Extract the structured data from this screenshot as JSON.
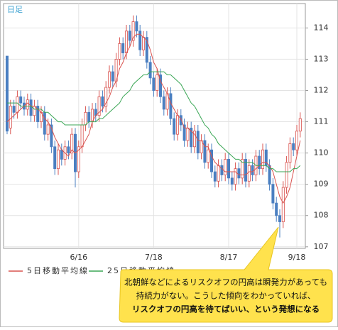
{
  "chart_data": {
    "type": "candlestick",
    "corner_label": "日足",
    "categories": [
      null,
      null,
      null,
      null,
      null,
      null,
      null,
      null,
      null,
      null,
      null,
      null,
      null,
      null,
      null,
      null,
      null,
      null,
      null,
      null,
      null,
      "6/16",
      null,
      null,
      null,
      null,
      null,
      null,
      null,
      null,
      null,
      null,
      null,
      null,
      null,
      null,
      null,
      null,
      null,
      null,
      null,
      null,
      null,
      "7/18",
      null,
      null,
      null,
      null,
      null,
      null,
      null,
      null,
      null,
      null,
      null,
      null,
      null,
      null,
      null,
      null,
      null,
      null,
      null,
      null,
      null,
      "8/17",
      null,
      null,
      null,
      null,
      null,
      null,
      null,
      null,
      null,
      null,
      null,
      null,
      null,
      null,
      null,
      null,
      null,
      null,
      null,
      "9/18",
      null
    ],
    "open": [
      113.1,
      110.8,
      111.5,
      111.3,
      111.8,
      111.6,
      111.4,
      111.7,
      111.2,
      111.5,
      111.0,
      111.3,
      110.6,
      110.9,
      110.2,
      109.5,
      110.1,
      109.8,
      110.2,
      110.0,
      110.6,
      109.4,
      110.2,
      110.9,
      111.3,
      111.0,
      111.4,
      111.2,
      111.8,
      111.5,
      112.1,
      112.6,
      112.3,
      113.0,
      113.5,
      113.2,
      113.9,
      113.6,
      114.2,
      113.9,
      113.3,
      113.7,
      112.9,
      112.4,
      112.0,
      112.5,
      111.8,
      111.4,
      111.9,
      111.1,
      110.6,
      111.2,
      110.9,
      110.4,
      110.8,
      110.2,
      110.7,
      110.0,
      110.4,
      109.7,
      110.1,
      109.4,
      109.1,
      109.6,
      109.3,
      109.8,
      109.2,
      109.0,
      109.5,
      109.2,
      109.8,
      109.1,
      109.6,
      109.3,
      109.9,
      109.5,
      110.1,
      109.6,
      109.0,
      108.4,
      108.0,
      107.8,
      108.9,
      109.7,
      110.3,
      110.1,
      110.7
    ],
    "high": [
      113.1,
      111.7,
      111.7,
      112.0,
      112.0,
      111.8,
      111.9,
      111.9,
      111.7,
      111.7,
      111.5,
      111.5,
      111.1,
      111.1,
      110.4,
      110.3,
      110.3,
      110.4,
      110.4,
      110.8,
      110.8,
      110.4,
      111.1,
      111.5,
      111.5,
      111.6,
      111.6,
      112.0,
      112.0,
      112.3,
      112.8,
      112.8,
      113.2,
      113.7,
      113.7,
      114.1,
      114.1,
      114.4,
      114.4,
      114.1,
      113.9,
      113.9,
      113.1,
      112.6,
      112.7,
      112.7,
      112.0,
      112.1,
      112.1,
      111.3,
      111.4,
      111.4,
      111.1,
      111.0,
      111.0,
      110.9,
      110.9,
      110.6,
      110.6,
      110.3,
      110.3,
      109.6,
      109.8,
      109.8,
      110.0,
      110.0,
      109.4,
      109.7,
      109.7,
      110.0,
      110.0,
      109.8,
      109.8,
      110.1,
      110.1,
      110.3,
      110.3,
      109.8,
      109.2,
      108.6,
      108.2,
      109.1,
      109.9,
      110.5,
      110.5,
      110.9,
      111.3
    ],
    "low": [
      110.6,
      110.6,
      111.1,
      111.1,
      111.4,
      111.2,
      111.2,
      111.0,
      111.0,
      110.8,
      110.8,
      110.4,
      110.4,
      110.0,
      109.3,
      109.3,
      109.6,
      109.6,
      109.8,
      109.8,
      108.9,
      109.2,
      110.0,
      110.7,
      110.8,
      110.8,
      111.0,
      111.0,
      111.3,
      111.3,
      111.9,
      112.1,
      112.1,
      112.8,
      113.0,
      113.0,
      113.4,
      113.4,
      113.7,
      113.1,
      113.1,
      112.7,
      112.2,
      111.8,
      111.8,
      111.6,
      111.2,
      111.2,
      110.9,
      110.4,
      110.4,
      110.7,
      110.2,
      110.2,
      110.0,
      110.0,
      109.8,
      109.8,
      109.5,
      109.5,
      109.2,
      108.9,
      108.9,
      109.1,
      109.1,
      109.0,
      108.8,
      108.8,
      109.0,
      109.0,
      108.9,
      108.9,
      109.1,
      109.1,
      109.3,
      109.3,
      109.4,
      108.8,
      108.2,
      107.8,
      107.3,
      107.6,
      108.7,
      109.5,
      109.9,
      109.9,
      110.5
    ],
    "close": [
      110.7,
      111.5,
      111.3,
      111.8,
      111.6,
      111.4,
      111.7,
      111.2,
      111.5,
      111.0,
      111.3,
      110.6,
      110.9,
      110.2,
      109.5,
      110.1,
      109.8,
      110.2,
      110.0,
      110.6,
      109.4,
      110.2,
      110.9,
      111.3,
      111.0,
      111.4,
      111.2,
      111.8,
      111.5,
      112.1,
      112.6,
      112.3,
      113.0,
      113.5,
      113.2,
      113.9,
      113.6,
      114.2,
      113.9,
      113.3,
      113.7,
      112.9,
      112.4,
      112.0,
      112.5,
      111.8,
      111.4,
      111.9,
      111.1,
      110.6,
      111.2,
      110.9,
      110.4,
      110.8,
      110.2,
      110.7,
      110.0,
      110.4,
      109.7,
      110.1,
      109.4,
      109.1,
      109.6,
      109.3,
      109.8,
      109.2,
      109.0,
      109.5,
      109.2,
      109.8,
      109.1,
      109.6,
      109.3,
      109.9,
      109.5,
      110.1,
      109.6,
      109.0,
      108.4,
      108.0,
      107.8,
      108.9,
      109.7,
      110.3,
      110.1,
      110.7,
      111.1
    ],
    "up_color": "#d9534f",
    "down_color": "#4a7fc1",
    "series": [
      {
        "name": "5日移動平均線",
        "color": "#d9534f",
        "values": [
          111.0,
          111.1,
          111.2,
          111.3,
          111.4,
          111.5,
          111.6,
          111.5,
          111.5,
          111.4,
          111.3,
          111.1,
          111.0,
          110.8,
          110.5,
          110.3,
          110.1,
          110.0,
          109.9,
          110.1,
          110.0,
          110.1,
          110.2,
          110.4,
          110.6,
          111.0,
          111.2,
          111.3,
          111.4,
          111.6,
          111.8,
          112.1,
          112.3,
          112.7,
          112.9,
          113.2,
          113.4,
          113.7,
          113.8,
          113.8,
          113.7,
          113.6,
          113.3,
          112.9,
          112.7,
          112.3,
          112.1,
          111.9,
          111.6,
          111.4,
          111.2,
          111.1,
          110.8,
          110.8,
          110.7,
          110.6,
          110.4,
          110.4,
          110.2,
          110.2,
          109.9,
          109.7,
          109.6,
          109.5,
          109.4,
          109.4,
          109.4,
          109.4,
          109.3,
          109.3,
          109.3,
          109.4,
          109.4,
          109.5,
          109.6,
          109.7,
          109.7,
          109.6,
          109.4,
          109.0,
          108.6,
          108.4,
          108.6,
          108.9,
          109.4,
          109.9,
          110.4
        ]
      },
      {
        "name": "25日移動平均線",
        "color": "#3aa655",
        "values": [
          111.6,
          111.6,
          111.6,
          111.6,
          111.5,
          111.5,
          111.5,
          111.5,
          111.4,
          111.4,
          111.4,
          111.3,
          111.3,
          111.2,
          111.1,
          111.0,
          111.0,
          110.9,
          110.9,
          110.9,
          110.9,
          110.9,
          110.9,
          110.9,
          111.0,
          111.0,
          111.0,
          111.1,
          111.1,
          111.2,
          111.3,
          111.4,
          111.5,
          111.6,
          111.8,
          111.9,
          112.0,
          112.2,
          112.3,
          112.4,
          112.5,
          112.5,
          112.6,
          112.6,
          112.6,
          112.6,
          112.6,
          112.5,
          112.5,
          112.4,
          112.3,
          112.2,
          112.0,
          111.8,
          111.6,
          111.5,
          111.3,
          111.1,
          110.9,
          110.8,
          110.6,
          110.5,
          110.3,
          110.2,
          110.1,
          110.0,
          109.9,
          109.8,
          109.8,
          109.7,
          109.7,
          109.7,
          109.7,
          109.6,
          109.6,
          109.6,
          109.6,
          109.5,
          109.5,
          109.4,
          109.4,
          109.4,
          109.4,
          109.4,
          109.5,
          109.5,
          109.6
        ]
      }
    ],
    "ylim": [
      106.95,
      114.78
    ],
    "yticks": [
      107,
      108,
      109,
      110,
      111,
      112,
      113,
      114
    ],
    "grid": true,
    "callout": {
      "lines": [
        "北朝鮮などによるリスクオフの円高は瞬発力があっても",
        "持続力がない。こうした傾向をわかっていれば、",
        "リスクオフの円高を待てばいい、という発想になる"
      ]
    }
  }
}
